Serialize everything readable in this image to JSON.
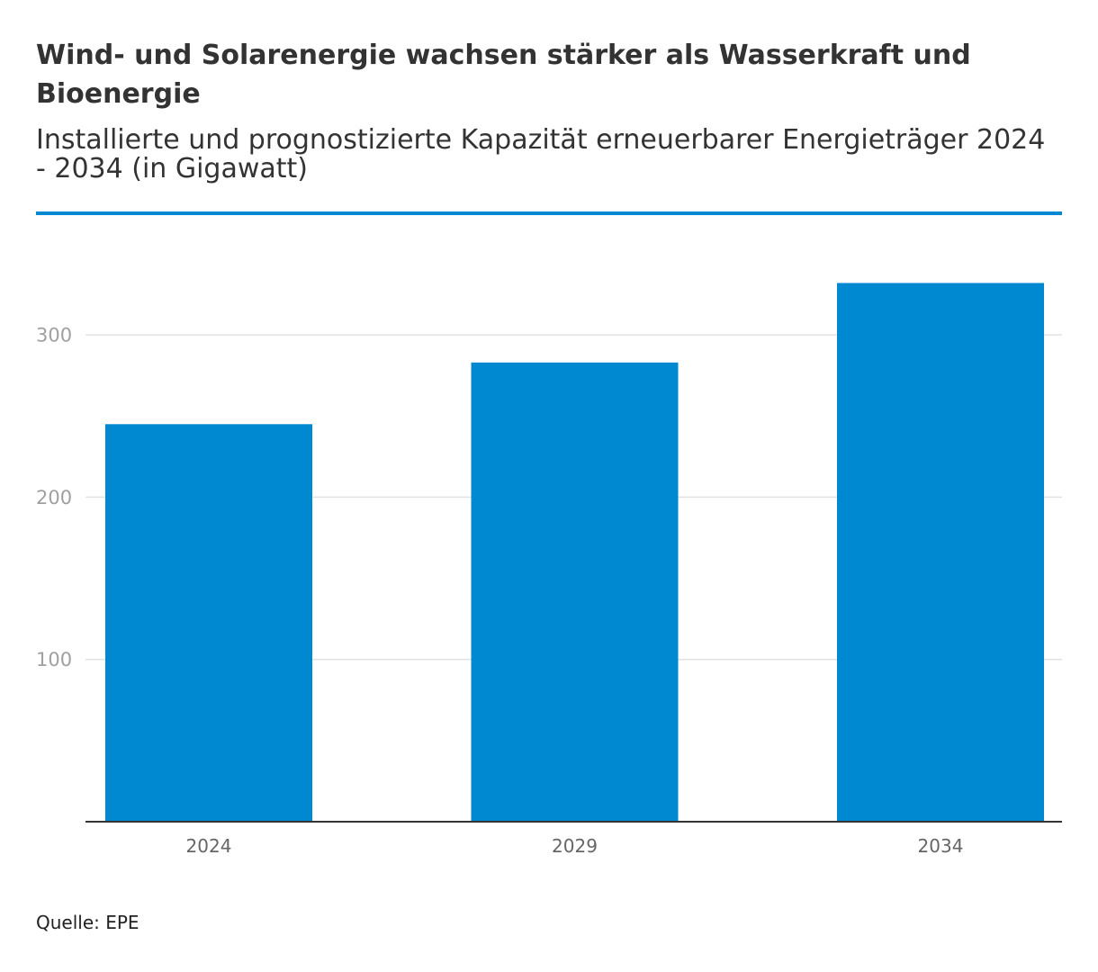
{
  "colors": {
    "bar": "#0089d1",
    "rule": "#0089d1",
    "text": "#333333"
  },
  "chart_data": {
    "type": "bar",
    "title": "Wind- und Solarenergie wachsen stärker als Wasserkraft und Bioenergie",
    "subtitle": "Installierte und prognostizierte Kapazität erneuerbarer Energieträger 2024 - 2034 (in Gigawatt)",
    "source": "Quelle: EPE",
    "categories": [
      "2024",
      "2029",
      "2034"
    ],
    "values": [
      245,
      283,
      332
    ],
    "ylim": [
      0,
      350
    ],
    "yticks": [
      100,
      200,
      300
    ],
    "grid": true
  }
}
